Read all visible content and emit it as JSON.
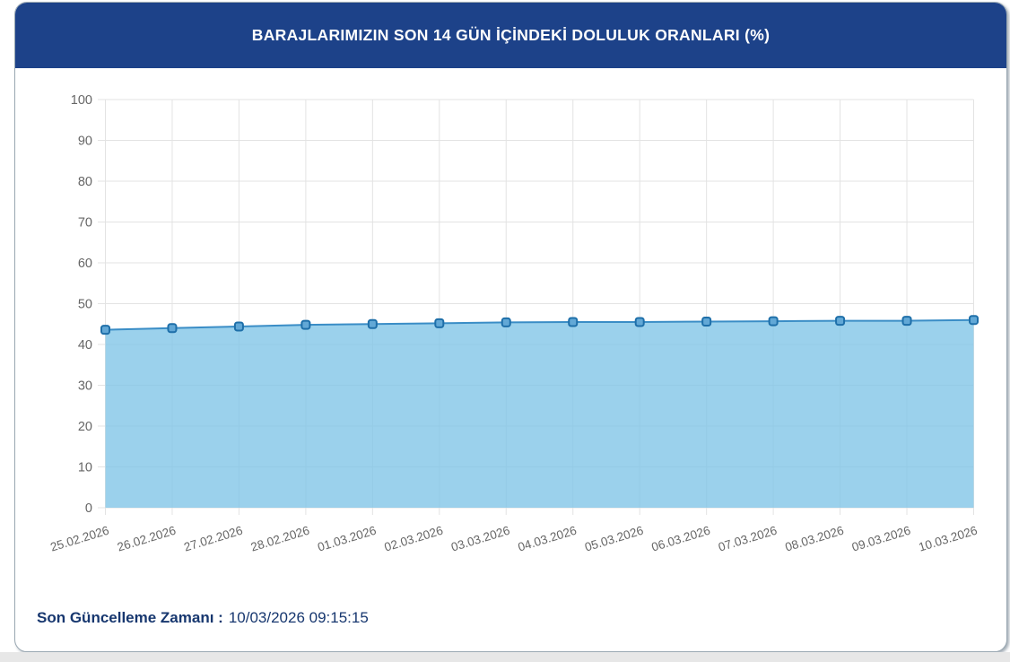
{
  "header": {
    "title": "BARAJLARIMIZIN SON 14 GÜN İÇİNDEKİ DOLULUK ORANLARI (%)"
  },
  "footer": {
    "label": "Son Güncelleme Zamanı :",
    "value": "10/03/2026 09:15:15"
  },
  "colors": {
    "header_bg": "#1d4289",
    "title_text": "#ffffff",
    "area_fill": "#7fc4e7",
    "line": "#3a8dc6",
    "marker_fill": "#62a8d6",
    "marker_border": "#1e6fa9",
    "gridline": "#e3e3e3",
    "axis_tick_text": "#666666",
    "footer_text": "#17376f",
    "card_border": "#9aa8b2",
    "page_bottom_strip": "#e7e7e7"
  },
  "chart_data": {
    "type": "area",
    "title": "BARAJLARIMIZIN SON 14 GÜN İÇİNDEKİ DOLULUK ORANLARI (%)",
    "categories": [
      "25.02.2026",
      "26.02.2026",
      "27.02.2026",
      "28.02.2026",
      "01.03.2026",
      "02.03.2026",
      "03.03.2026",
      "04.03.2026",
      "05.03.2026",
      "06.03.2026",
      "07.03.2026",
      "08.03.2026",
      "09.03.2026",
      "10.03.2026"
    ],
    "values": [
      43.6,
      44.0,
      44.4,
      44.8,
      45.0,
      45.2,
      45.4,
      45.5,
      45.5,
      45.6,
      45.7,
      45.8,
      45.8,
      46.0
    ],
    "xlabel": "",
    "ylabel": "",
    "ylim": [
      0,
      100
    ],
    "y_ticks": [
      0,
      10,
      20,
      30,
      40,
      50,
      60,
      70,
      80,
      90,
      100
    ],
    "grid": true,
    "legend": false,
    "x_tick_rotation_deg": -17
  }
}
